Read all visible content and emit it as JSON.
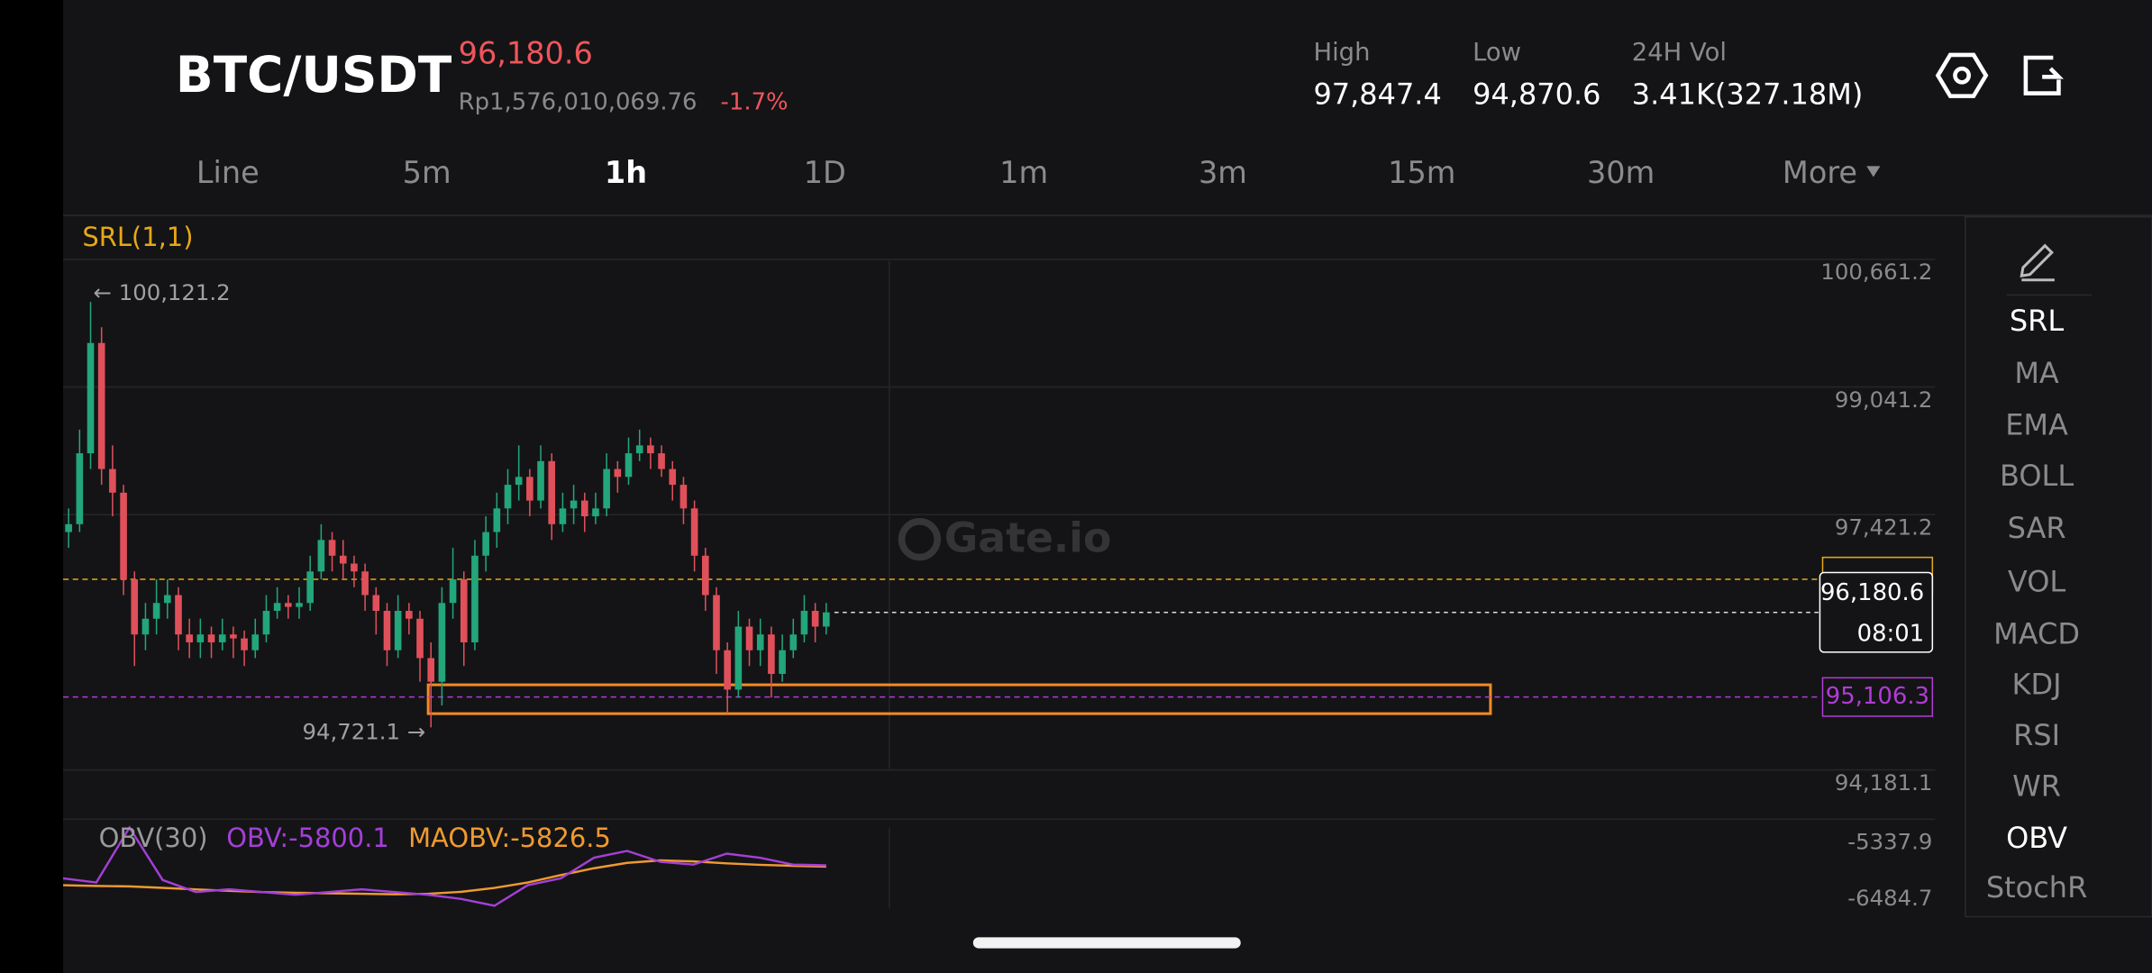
{
  "header": {
    "pair": "BTC/USDT",
    "price": "96,180.6",
    "fiat": "Rp1,576,010,069.76",
    "change": "-1.7%",
    "stats": [
      {
        "label": "High",
        "value": "97,847.4"
      },
      {
        "label": "Low",
        "value": "94,870.6"
      },
      {
        "label": "24H Vol",
        "value": "3.41K(327.18M)"
      }
    ]
  },
  "tabs": {
    "items": [
      "Line",
      "5m",
      "1h",
      "1D",
      "1m",
      "3m",
      "15m",
      "30m",
      "More"
    ],
    "active": 2
  },
  "indicators": {
    "items": [
      "SRL",
      "MA",
      "EMA",
      "BOLL",
      "SAR",
      "VOL",
      "MACD",
      "KDJ",
      "RSI",
      "WR",
      "OBV",
      "StochR"
    ],
    "active": [
      0,
      10
    ]
  },
  "watermark": "Gate.io",
  "chart_data": [
    {
      "type": "candlestick",
      "title": "SRL(1,1)",
      "up_color": "#22a67a",
      "down_color": "#e0505a",
      "open": [
        97200,
        97300,
        98200,
        99600,
        98000,
        97700,
        96600,
        95900,
        96100,
        96300,
        96400,
        95900,
        95800,
        95900,
        95800,
        95900,
        95850,
        95700,
        95900,
        96200,
        96300,
        96250,
        96300,
        96700,
        97100,
        96900,
        96800,
        96700,
        96400,
        96200,
        95700,
        96200,
        96100,
        95600,
        95300,
        96300,
        96600,
        95800,
        96900,
        97200,
        97500,
        97800,
        97900,
        97600,
        98100,
        97300,
        97500,
        97600,
        97400,
        97500,
        98000,
        97900,
        98200,
        98300,
        98200,
        98000,
        97800,
        97500,
        96900,
        96400,
        95700,
        95200,
        96000,
        95700,
        95900,
        95400,
        95700,
        95900,
        96200,
        96000
      ],
      "high": [
        97500,
        98500,
        100121.2,
        99800,
        98300,
        97800,
        96700,
        96300,
        96600,
        96600,
        96500,
        96100,
        96100,
        96000,
        96100,
        96000,
        95950,
        96100,
        96400,
        96500,
        96400,
        96500,
        96900,
        97300,
        97200,
        97100,
        96900,
        96800,
        96500,
        96300,
        96400,
        96300,
        96200,
        95800,
        96500,
        97000,
        96700,
        97100,
        97400,
        97700,
        98000,
        98300,
        98000,
        98300,
        98200,
        97700,
        97800,
        97700,
        97700,
        98200,
        98100,
        98400,
        98500,
        98400,
        98300,
        98100,
        97900,
        97600,
        97000,
        96500,
        95800,
        96200,
        96100,
        96100,
        96000,
        95900,
        96100,
        96400,
        96300,
        96300
      ],
      "low": [
        97000,
        97200,
        98000,
        97800,
        97400,
        96400,
        95500,
        95700,
        95900,
        96100,
        95700,
        95600,
        95600,
        95600,
        95700,
        95600,
        95500,
        95600,
        95800,
        96100,
        96100,
        96100,
        96200,
        96600,
        96700,
        96600,
        96500,
        96200,
        95900,
        95500,
        95600,
        95900,
        95300,
        94721.1,
        95000,
        96100,
        95500,
        95700,
        96700,
        97000,
        97300,
        97600,
        97400,
        97500,
        97100,
        97200,
        97300,
        97200,
        97300,
        97400,
        97700,
        97800,
        98100,
        98000,
        97900,
        97600,
        97300,
        96700,
        96200,
        95400,
        94900,
        95100,
        95500,
        95500,
        95100,
        95300,
        95600,
        95800,
        95800,
        95900
      ],
      "close": [
        97300,
        98200,
        99600,
        98000,
        97700,
        96600,
        95900,
        96100,
        96300,
        96400,
        95900,
        95800,
        95900,
        95800,
        95900,
        95850,
        95700,
        95900,
        96200,
        96300,
        96250,
        96300,
        96700,
        97100,
        96900,
        96800,
        96700,
        96400,
        96200,
        95700,
        96200,
        96100,
        95600,
        95300,
        96300,
        96600,
        95800,
        96900,
        97200,
        97500,
        97800,
        97900,
        97600,
        98100,
        97300,
        97500,
        97600,
        97400,
        97500,
        98000,
        97900,
        98200,
        98300,
        98200,
        98000,
        97800,
        97500,
        96900,
        96400,
        95700,
        95200,
        96000,
        95700,
        95900,
        95400,
        95700,
        95900,
        96200,
        96000,
        96180.6
      ],
      "ylim": [
        94181.1,
        100661.2
      ],
      "yticks": [
        {
          "value": 100661.2,
          "label": "100,661.2"
        },
        {
          "value": 99041.2,
          "label": "99,041.2"
        },
        {
          "value": 97421.2,
          "label": "97,421.2"
        },
        {
          "value": 94181.1,
          "label": "94,181.1"
        }
      ],
      "high_label": "← 100,121.2",
      "low_label": "94,721.1 →",
      "srl_level": 96600,
      "srl_color": "#e6a817",
      "current_price": {
        "value": 96180.6,
        "label": "96,180.6",
        "countdown": "08:01"
      },
      "support": {
        "value": 95106.3,
        "label": "95,106.3",
        "color": "#b03cd6"
      },
      "zone": {
        "top": 95261,
        "bottom": 94895,
        "color": "#f08a24"
      }
    },
    {
      "type": "line",
      "title": "OBV(30)",
      "series": [
        {
          "name": "OBV:-5800.1",
          "color": "#a43fd8",
          "values": [
            -6065,
            -6150,
            -5030,
            -6100,
            -6345,
            -6289,
            -6345,
            -6401,
            -6345,
            -6289,
            -6345,
            -6401,
            -6485,
            -6624,
            -6205,
            -6065,
            -5646,
            -5506,
            -5729,
            -5785,
            -5562,
            -5646,
            -5785,
            -5800.1
          ]
        },
        {
          "name": "MAOBV:-5826.5",
          "color": "#f09a30",
          "values": [
            -6205,
            -6220,
            -6230,
            -6260,
            -6290,
            -6320,
            -6345,
            -6360,
            -6370,
            -6380,
            -6390,
            -6380,
            -6340,
            -6260,
            -6150,
            -6000,
            -5860,
            -5750,
            -5700,
            -5720,
            -5760,
            -5790,
            -5810,
            -5826.5
          ]
        }
      ],
      "ylim": [
        -6680,
        -5030
      ],
      "yticks": [
        -5337.9,
        -6484.7
      ]
    }
  ]
}
